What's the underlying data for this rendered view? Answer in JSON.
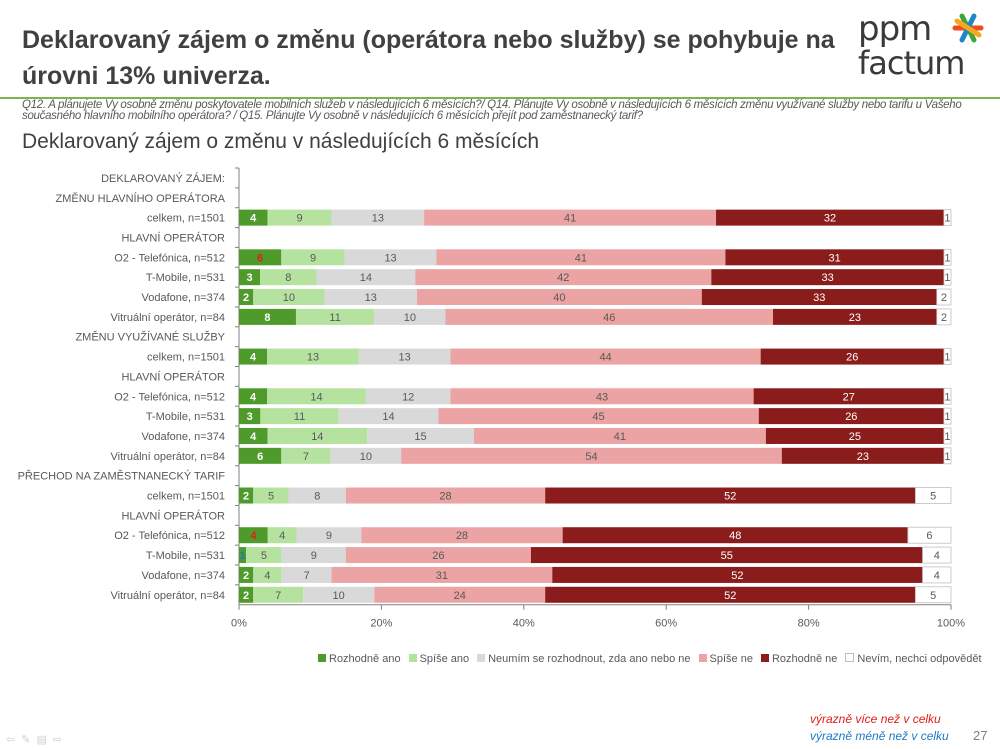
{
  "header": {
    "title": "Deklarovaný zájem o změnu (operátora nebo služby) se pohybuje na úrovni 13% univerza.",
    "logo_text": [
      "ppm",
      "factum"
    ]
  },
  "question": "Q12. A plánujete Vy osobně změnu poskytovatele mobilních služeb v následujících 6 měsících?/ Q14. Plánujte Vy osobně v následujících 6 měsících změnu využívané služby nebo tarifu u Vašeho současného hlavního mobilního operátora? / Q15. Plánujte Vy osobně v následujících 6 měsících přejít pod zaměstnanecký tarif?",
  "chart_data": {
    "type": "bar",
    "orientation": "horizontal-stacked-100",
    "title": "Deklarovaný zájem o změnu v následujících 6 měsících",
    "xlim": [
      0,
      100
    ],
    "x_ticks": [
      "0%",
      "20%",
      "40%",
      "60%",
      "80%",
      "100%"
    ],
    "legend_position": "bottom",
    "series_names": [
      "Rozhodně ano",
      "Spíše ano",
      "Neumím se rozhodnout, zda ano nebo ne",
      "Spíše ne",
      "Rozhodně ne",
      "Nevím, nechci odpovědět"
    ],
    "series_colors": [
      "#4e9a2a",
      "#b6e2a0",
      "#d9d9d9",
      "#eba3a3",
      "#8b1c1c",
      "#ffffff"
    ],
    "rows": [
      {
        "label": "DEKLAROVANÝ ZÁJEM:",
        "values": null
      },
      {
        "label": "ZMĚNU HLAVNÍHO OPERÁTORA",
        "values": null
      },
      {
        "label": "celkem, n=1501",
        "values": [
          4,
          9,
          13,
          41,
          32,
          1
        ]
      },
      {
        "label": "HLAVNÍ OPERÁTOR",
        "values": null
      },
      {
        "label": "O2 - Telefónica, n=512",
        "values": [
          6,
          9,
          13,
          41,
          31,
          1
        ],
        "highlight": {
          "0": "more"
        }
      },
      {
        "label": "T-Mobile, n=531",
        "values": [
          3,
          8,
          14,
          42,
          33,
          1
        ]
      },
      {
        "label": "Vodafone, n=374",
        "values": [
          2,
          10,
          13,
          40,
          33,
          2
        ]
      },
      {
        "label": "Vitruální operátor, n=84",
        "values": [
          8,
          11,
          10,
          46,
          23,
          2
        ]
      },
      {
        "label": "ZMĚNU VYUŽÍVANÉ SLUŽBY",
        "values": null
      },
      {
        "label": "celkem, n=1501",
        "values": [
          4,
          13,
          13,
          44,
          26,
          1
        ]
      },
      {
        "label": "HLAVNÍ OPERÁTOR",
        "values": null
      },
      {
        "label": "O2 - Telefónica, n=512",
        "values": [
          4,
          14,
          12,
          43,
          27,
          1
        ]
      },
      {
        "label": "T-Mobile, n=531",
        "values": [
          3,
          11,
          14,
          45,
          26,
          1
        ]
      },
      {
        "label": "Vodafone, n=374",
        "values": [
          4,
          14,
          15,
          41,
          25,
          1
        ]
      },
      {
        "label": "Vitruální operátor, n=84",
        "values": [
          6,
          7,
          10,
          54,
          23,
          1
        ]
      },
      {
        "label": "PŘECHOD NA ZAMĚSTNANECKÝ TARIF",
        "values": null
      },
      {
        "label": "celkem, n=1501",
        "values": [
          2,
          5,
          8,
          28,
          52,
          5
        ]
      },
      {
        "label": "HLAVNÍ OPERÁTOR",
        "values": null
      },
      {
        "label": "O2 - Telefónica, n=512",
        "values": [
          4,
          4,
          9,
          28,
          48,
          6
        ],
        "highlight": {
          "0": "more"
        }
      },
      {
        "label": "T-Mobile, n=531",
        "values": [
          1,
          5,
          9,
          26,
          55,
          4
        ],
        "highlight": {
          "0": "less"
        }
      },
      {
        "label": "Vodafone, n=374",
        "values": [
          2,
          4,
          7,
          31,
          52,
          4
        ]
      },
      {
        "label": "Vitruální operátor, n=84",
        "values": [
          2,
          7,
          10,
          24,
          52,
          5
        ]
      }
    ]
  },
  "notes": {
    "more": "výrazně více než v celku",
    "less": "výrazně méně než v celku",
    "more_color": "#e0201b",
    "less_color": "#1f7ac2"
  },
  "page_number": "27",
  "nav_icons": [
    "arrow-left-icon",
    "pen-icon",
    "menu-icon",
    "arrow-right-icon"
  ]
}
